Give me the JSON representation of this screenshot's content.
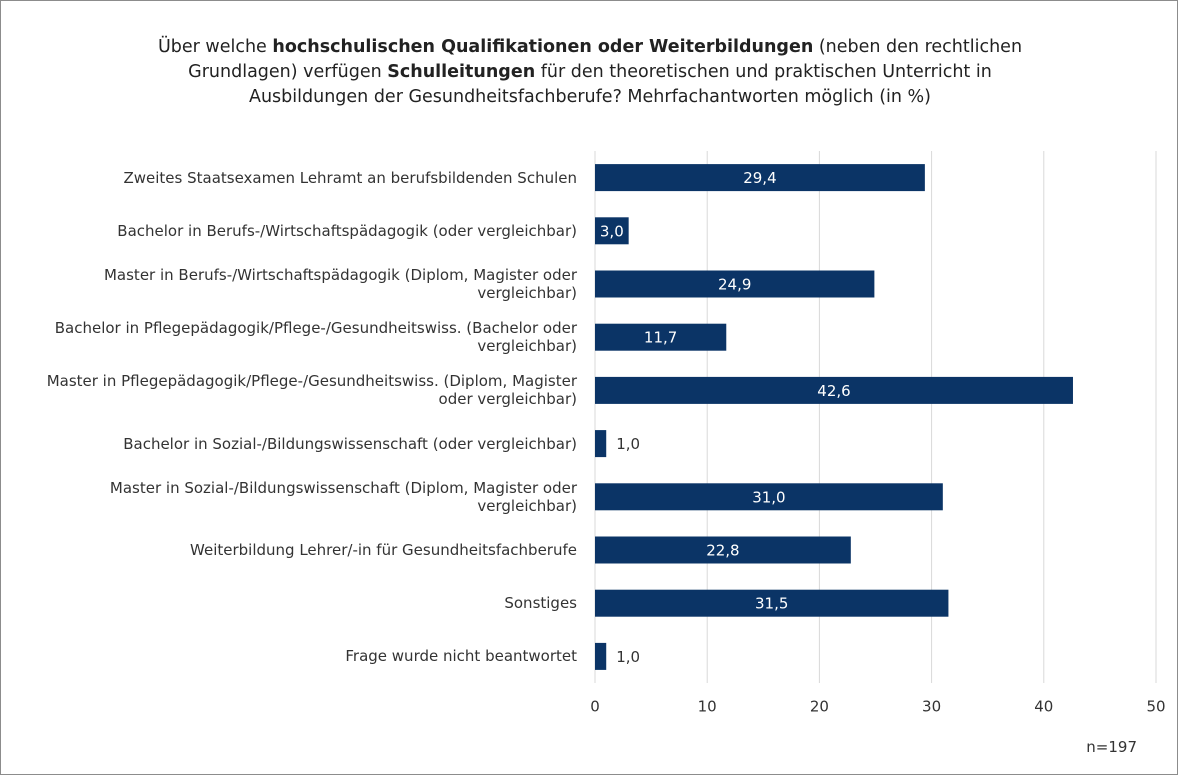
{
  "chart_data": {
    "type": "bar",
    "orientation": "horizontal",
    "title": [
      {
        "text": "Über welche ",
        "bold": false
      },
      {
        "text": "hochschulischen Qualifikationen oder Weiterbildungen",
        "bold": true
      },
      {
        "text": " (neben den rechtlichen Grundlagen) verfügen ",
        "bold": false
      },
      {
        "text": "Schulleitungen",
        "bold": true
      },
      {
        "text": " für den theoretischen und praktischen Unterricht in Ausbildungen der Gesundheitsfachberufe? Mehrfachantworten möglich (in %)",
        "bold": false
      }
    ],
    "categories": [
      "Zweites Staatsexamen Lehramt an berufsbildenden Schulen",
      "Bachelor in Berufs-/Wirtschaftspädagogik (oder vergleichbar)",
      "Master in Berufs-/Wirtschaftspädagogik (Diplom, Magister oder vergleichbar)",
      "Bachelor in Pflegepädagogik/Pflege-/Gesundheitswiss. (Bachelor oder vergleichbar)",
      "Master in Pflegepädagogik/Pflege-/Gesundheitswiss. (Diplom, Magister oder vergleichbar)",
      "Bachelor in Sozial-/Bildungswissenschaft (oder vergleichbar)",
      "Master in Sozial-/Bildungswissenschaft (Diplom, Magister oder vergleichbar)",
      "Weiterbildung Lehrer/-in für Gesundheitsfachberufe",
      "Sonstiges",
      "Frage wurde nicht beantwortet"
    ],
    "values": [
      29.4,
      3.0,
      24.9,
      11.7,
      42.6,
      1.0,
      31.0,
      22.8,
      31.5,
      1.0
    ],
    "value_labels": [
      "29,4",
      "3,0",
      "24,9",
      "11,7",
      "42,6",
      "1,0",
      "31,0",
      "22,8",
      "31,5",
      "1,0"
    ],
    "color": "#0b3466",
    "xlim": [
      0,
      50
    ],
    "xticks": [
      0,
      10,
      20,
      30,
      40,
      50
    ],
    "grid": true,
    "annotation": "n=197"
  }
}
